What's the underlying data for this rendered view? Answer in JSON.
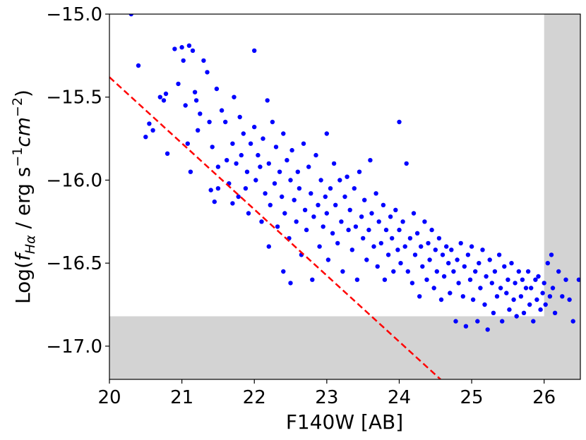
{
  "chart_data": {
    "type": "scatter",
    "xlabel": "F140W [AB]",
    "ylabel": {
      "prefix": "Log(",
      "f": "f",
      "f_subscript": "Hα",
      "mid": " / erg s",
      "exp1": "−1",
      "cm": "cm",
      "exp2": "−2",
      "suffix": ")"
    },
    "xlim": [
      20,
      26.5
    ],
    "ylim": [
      -17.2,
      -15.0
    ],
    "xticks": [
      20,
      21,
      22,
      23,
      24,
      25,
      26
    ],
    "xtick_labels": [
      "20",
      "21",
      "22",
      "23",
      "24",
      "25",
      "26"
    ],
    "yticks": [
      -15.0,
      -15.5,
      -16.0,
      -16.5,
      -17.0
    ],
    "ytick_labels": [
      "−15.0",
      "−15.5",
      "−16.0",
      "−16.5",
      "−17.0"
    ],
    "grid": false,
    "colors": {
      "points": "#0000ff",
      "line": "#ff0000",
      "excluded_region": "#d3d3d3"
    },
    "excluded_regions": [
      {
        "x": [
          26.0,
          26.5
        ],
        "y": [
          -17.2,
          -15.0
        ]
      },
      {
        "x": [
          20.0,
          26.5
        ],
        "y": [
          -17.2,
          -16.82
        ]
      }
    ],
    "reference_line": {
      "style": "dashed",
      "points": [
        [
          20.0,
          -15.38
        ],
        [
          24.57,
          -17.2
        ]
      ]
    },
    "series": [
      {
        "marker": "circle",
        "points": [
          [
            20.3,
            -15.0
          ],
          [
            20.4,
            -15.31
          ],
          [
            20.5,
            -15.74
          ],
          [
            20.55,
            -15.66
          ],
          [
            20.6,
            -15.7
          ],
          [
            20.7,
            -15.5
          ],
          [
            20.75,
            -15.52
          ],
          [
            20.78,
            -15.48
          ],
          [
            20.8,
            -15.84
          ],
          [
            20.9,
            -15.21
          ],
          [
            20.95,
            -15.42
          ],
          [
            21.0,
            -15.2
          ],
          [
            21.02,
            -15.28
          ],
          [
            21.05,
            -15.55
          ],
          [
            21.08,
            -15.78
          ],
          [
            21.1,
            -15.19
          ],
          [
            21.12,
            -15.95
          ],
          [
            21.15,
            -15.22
          ],
          [
            21.18,
            -15.47
          ],
          [
            21.2,
            -15.52
          ],
          [
            21.22,
            -15.7
          ],
          [
            21.25,
            -15.6
          ],
          [
            21.3,
            -15.28
          ],
          [
            21.35,
            -15.35
          ],
          [
            21.38,
            -15.65
          ],
          [
            21.4,
            -16.06
          ],
          [
            21.42,
            -15.8
          ],
          [
            21.45,
            -16.13
          ],
          [
            21.48,
            -15.45
          ],
          [
            21.5,
            -15.92
          ],
          [
            21.5,
            -16.05
          ],
          [
            21.55,
            -15.58
          ],
          [
            21.6,
            -15.65
          ],
          [
            21.62,
            -15.88
          ],
          [
            21.65,
            -16.02
          ],
          [
            21.7,
            -15.78
          ],
          [
            21.7,
            -16.14
          ],
          [
            21.72,
            -15.5
          ],
          [
            21.75,
            -15.9
          ],
          [
            21.78,
            -16.1
          ],
          [
            21.8,
            -15.62
          ],
          [
            21.82,
            -15.85
          ],
          [
            21.85,
            -15.72
          ],
          [
            21.88,
            -16.05
          ],
          [
            21.9,
            -15.95
          ],
          [
            21.92,
            -16.2
          ],
          [
            21.95,
            -15.78
          ],
          [
            22.0,
            -15.22
          ],
          [
            22.0,
            -15.68
          ],
          [
            22.02,
            -16.0
          ],
          [
            22.05,
            -15.85
          ],
          [
            22.08,
            -15.92
          ],
          [
            22.1,
            -16.25
          ],
          [
            22.12,
            -15.75
          ],
          [
            22.15,
            -16.08
          ],
          [
            22.18,
            -15.52
          ],
          [
            22.2,
            -15.9
          ],
          [
            22.2,
            -16.4
          ],
          [
            22.22,
            -16.15
          ],
          [
            22.25,
            -15.65
          ],
          [
            22.28,
            -16.02
          ],
          [
            22.3,
            -15.8
          ],
          [
            22.32,
            -16.28
          ],
          [
            22.35,
            -15.95
          ],
          [
            22.38,
            -16.1
          ],
          [
            22.4,
            -16.55
          ],
          [
            22.4,
            -15.72
          ],
          [
            22.42,
            -16.2
          ],
          [
            22.45,
            -15.88
          ],
          [
            22.48,
            -16.35
          ],
          [
            22.5,
            -16.0
          ],
          [
            22.5,
            -16.62
          ],
          [
            22.52,
            -15.82
          ],
          [
            22.55,
            -16.12
          ],
          [
            22.58,
            -16.25
          ],
          [
            22.6,
            -15.95
          ],
          [
            22.62,
            -16.05
          ],
          [
            22.65,
            -16.45
          ],
          [
            22.68,
            -15.78
          ],
          [
            22.7,
            -16.18
          ],
          [
            22.72,
            -16.3
          ],
          [
            22.75,
            -15.92
          ],
          [
            22.78,
            -16.08
          ],
          [
            22.8,
            -16.6
          ],
          [
            22.82,
            -16.22
          ],
          [
            22.85,
            -15.85
          ],
          [
            22.88,
            -16.15
          ],
          [
            22.9,
            -16.4
          ],
          [
            22.92,
            -16.0
          ],
          [
            22.95,
            -16.28
          ],
          [
            22.98,
            -16.1
          ],
          [
            23.0,
            -15.72
          ],
          [
            23.0,
            -16.2
          ],
          [
            23.02,
            -16.48
          ],
          [
            23.05,
            -16.05
          ],
          [
            23.08,
            -16.32
          ],
          [
            23.1,
            -15.9
          ],
          [
            23.12,
            -16.15
          ],
          [
            23.15,
            -16.38
          ],
          [
            23.18,
            -16.0
          ],
          [
            23.2,
            -16.25
          ],
          [
            23.22,
            -16.55
          ],
          [
            23.25,
            -16.1
          ],
          [
            23.28,
            -15.98
          ],
          [
            23.3,
            -16.3
          ],
          [
            23.32,
            -16.18
          ],
          [
            23.35,
            -16.42
          ],
          [
            23.38,
            -16.05
          ],
          [
            23.4,
            -16.28
          ],
          [
            23.42,
            -16.6
          ],
          [
            23.45,
            -15.95
          ],
          [
            23.48,
            -16.22
          ],
          [
            23.5,
            -16.35
          ],
          [
            23.52,
            -16.12
          ],
          [
            23.55,
            -16.48
          ],
          [
            23.58,
            -16.3
          ],
          [
            23.6,
            -15.88
          ],
          [
            23.62,
            -16.2
          ],
          [
            23.65,
            -16.4
          ],
          [
            23.68,
            -16.08
          ],
          [
            23.7,
            -16.52
          ],
          [
            23.72,
            -16.25
          ],
          [
            23.75,
            -16.38
          ],
          [
            23.78,
            -16.15
          ],
          [
            23.8,
            -16.6
          ],
          [
            23.82,
            -16.3
          ],
          [
            23.85,
            -16.45
          ],
          [
            23.88,
            -16.22
          ],
          [
            23.9,
            -16.35
          ],
          [
            23.92,
            -16.55
          ],
          [
            23.95,
            -16.18
          ],
          [
            23.98,
            -16.42
          ],
          [
            24.0,
            -15.65
          ],
          [
            24.0,
            -16.3
          ],
          [
            24.02,
            -16.5
          ],
          [
            24.05,
            -16.25
          ],
          [
            24.08,
            -16.4
          ],
          [
            24.1,
            -15.9
          ],
          [
            24.12,
            -16.55
          ],
          [
            24.15,
            -16.35
          ],
          [
            24.18,
            -16.62
          ],
          [
            24.2,
            -16.2
          ],
          [
            24.22,
            -16.45
          ],
          [
            24.25,
            -16.32
          ],
          [
            24.28,
            -16.7
          ],
          [
            24.3,
            -16.4
          ],
          [
            24.32,
            -16.52
          ],
          [
            24.35,
            -16.25
          ],
          [
            24.38,
            -16.6
          ],
          [
            24.4,
            -16.38
          ],
          [
            24.42,
            -16.48
          ],
          [
            24.45,
            -16.3
          ],
          [
            24.48,
            -16.65
          ],
          [
            24.5,
            -16.42
          ],
          [
            24.52,
            -16.55
          ],
          [
            24.55,
            -16.35
          ],
          [
            24.58,
            -16.72
          ],
          [
            24.6,
            -16.45
          ],
          [
            24.62,
            -16.58
          ],
          [
            24.65,
            -16.4
          ],
          [
            24.68,
            -16.5
          ],
          [
            24.7,
            -16.68
          ],
          [
            24.72,
            -16.42
          ],
          [
            24.75,
            -16.55
          ],
          [
            24.78,
            -16.85
          ],
          [
            24.8,
            -16.48
          ],
          [
            24.82,
            -16.62
          ],
          [
            24.85,
            -16.38
          ],
          [
            24.88,
            -16.7
          ],
          [
            24.9,
            -16.52
          ],
          [
            24.92,
            -16.88
          ],
          [
            24.95,
            -16.45
          ],
          [
            24.98,
            -16.6
          ],
          [
            25.0,
            -16.4
          ],
          [
            25.02,
            -16.72
          ],
          [
            25.05,
            -16.55
          ],
          [
            25.08,
            -16.85
          ],
          [
            25.1,
            -16.5
          ],
          [
            25.12,
            -16.65
          ],
          [
            25.15,
            -16.42
          ],
          [
            25.18,
            -16.75
          ],
          [
            25.2,
            -16.58
          ],
          [
            25.22,
            -16.9
          ],
          [
            25.25,
            -16.48
          ],
          [
            25.28,
            -16.62
          ],
          [
            25.3,
            -16.8
          ],
          [
            25.32,
            -16.55
          ],
          [
            25.35,
            -16.7
          ],
          [
            25.38,
            -16.45
          ],
          [
            25.4,
            -16.65
          ],
          [
            25.42,
            -16.85
          ],
          [
            25.45,
            -16.52
          ],
          [
            25.48,
            -16.68
          ],
          [
            25.5,
            -16.6
          ],
          [
            25.52,
            -16.78
          ],
          [
            25.55,
            -16.5
          ],
          [
            25.58,
            -16.72
          ],
          [
            25.6,
            -16.62
          ],
          [
            25.62,
            -16.82
          ],
          [
            25.65,
            -16.55
          ],
          [
            25.68,
            -16.7
          ],
          [
            25.7,
            -16.6
          ],
          [
            25.72,
            -16.8
          ],
          [
            25.75,
            -16.65
          ],
          [
            25.78,
            -16.55
          ],
          [
            25.8,
            -16.75
          ],
          [
            25.82,
            -16.65
          ],
          [
            25.85,
            -16.85
          ],
          [
            25.88,
            -16.6
          ],
          [
            25.9,
            -16.72
          ],
          [
            25.92,
            -16.58
          ],
          [
            25.95,
            -16.78
          ],
          [
            25.98,
            -16.68
          ],
          [
            26.0,
            -16.62
          ],
          [
            26.02,
            -16.75
          ],
          [
            26.05,
            -16.5
          ],
          [
            26.08,
            -16.7
          ],
          [
            26.1,
            -16.45
          ],
          [
            26.12,
            -16.65
          ],
          [
            26.15,
            -16.8
          ],
          [
            26.2,
            -16.55
          ],
          [
            26.25,
            -16.7
          ],
          [
            26.3,
            -16.6
          ],
          [
            26.35,
            -16.72
          ],
          [
            26.4,
            -16.85
          ],
          [
            26.48,
            -16.6
          ]
        ]
      }
    ]
  }
}
